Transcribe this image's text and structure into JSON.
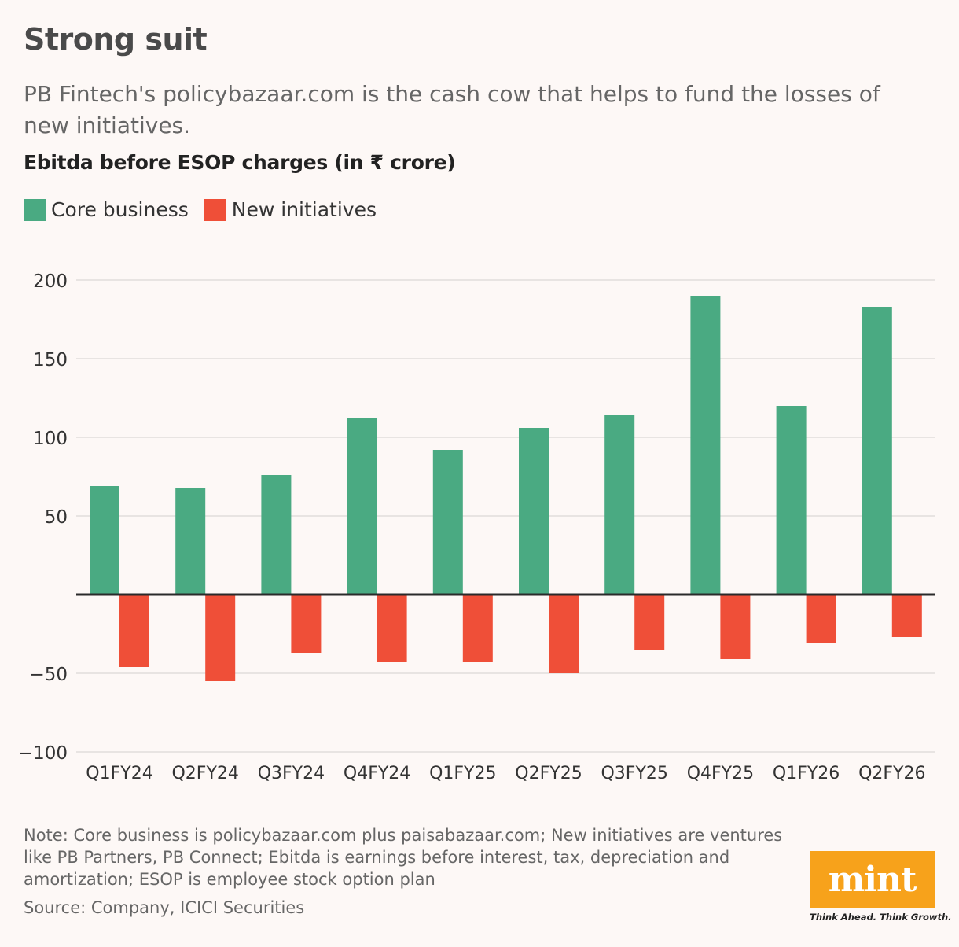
{
  "title": "Strong suit",
  "subtitle": "PB Fintech's policybazaar.com is the cash cow that helps to fund the losses of new initiatives.",
  "chart_title": "Ebitda before ESOP charges (in ₹ crore)",
  "legend": {
    "core": "Core business",
    "new": "New initiatives"
  },
  "colors": {
    "core": "#4aaa82",
    "new": "#ef4f38",
    "background": "#fdf8f6",
    "logo": "#f7a21b"
  },
  "note": "Note: Core business is policybazaar.com plus paisabazaar.com; New initiatives are ventures like PB Partners, PB Connect; Ebitda is earnings before interest, tax, depreciation and amortization; ESOP is employee stock option plan",
  "source": "Source: Company, ICICI Securities",
  "logo": {
    "name": "mint",
    "tagline": "Think Ahead. Think Growth."
  },
  "chart_data": {
    "type": "bar",
    "categories": [
      "Q1FY24",
      "Q2FY24",
      "Q3FY24",
      "Q4FY24",
      "Q1FY25",
      "Q2FY25",
      "Q3FY25",
      "Q4FY25",
      "Q1FY26",
      "Q2FY26"
    ],
    "series": [
      {
        "name": "Core business",
        "values": [
          69,
          68,
          76,
          112,
          92,
          106,
          114,
          190,
          120,
          183
        ]
      },
      {
        "name": "New initiatives",
        "values": [
          -46,
          -55,
          -37,
          -43,
          -43,
          -50,
          -35,
          -41,
          -31,
          -27
        ]
      }
    ],
    "yticks": [
      200,
      150,
      100,
      50,
      -50,
      -100
    ],
    "ytick_labels": [
      "200",
      "150",
      "100",
      "50",
      "−50",
      "−100"
    ],
    "ylim": [
      -100,
      200
    ],
    "grid": true,
    "legend_position": "top-left"
  }
}
